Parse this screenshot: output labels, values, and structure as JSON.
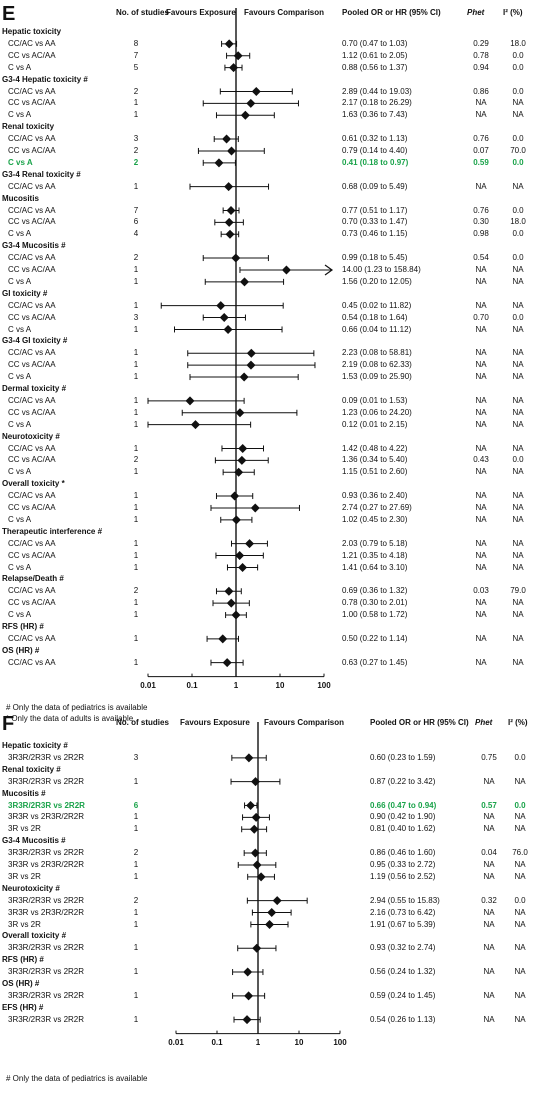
{
  "headers": {
    "n": "No. of studies",
    "exposure": "Favours Exposure",
    "comparison": "Favours Comparison",
    "or": "Pooled OR or HR (95% CI)",
    "phet": "Phet",
    "i2": "I² (%)"
  },
  "chart_data": [
    {
      "panel": "E",
      "type": "forest",
      "x_scale": "log",
      "xlim": [
        0.01,
        100
      ],
      "x_ticks": [
        "0.01",
        "0.1",
        "1",
        "10",
        "100"
      ],
      "reference_line": 1,
      "notes": [
        "# Only the data of pediatrics is available",
        "* Only the data of adults is available"
      ],
      "rows": [
        {
          "group": "Hepatic toxicity"
        },
        {
          "label": "CC/AC vs AA",
          "n": "8",
          "or": 0.7,
          "lo": 0.47,
          "hi": 1.03,
          "ci": "0.70 (0.47 to 1.03)",
          "phet": "0.29",
          "i2": "18.0"
        },
        {
          "label": "CC vs AC/AA",
          "n": "7",
          "or": 1.12,
          "lo": 0.61,
          "hi": 2.05,
          "ci": "1.12 (0.61 to 2.05)",
          "phet": "0.78",
          "i2": "0.0"
        },
        {
          "label": "C vs A",
          "n": "5",
          "or": 0.88,
          "lo": 0.56,
          "hi": 1.37,
          "ci": "0.88 (0.56 to 1.37)",
          "phet": "0.94",
          "i2": "0.0"
        },
        {
          "group": "G3-4 Hepatic toxicity #"
        },
        {
          "label": "CC/AC vs AA",
          "n": "2",
          "or": 2.89,
          "lo": 0.44,
          "hi": 19.03,
          "ci": "2.89 (0.44 to 19.03)",
          "phet": "0.86",
          "i2": "0.0"
        },
        {
          "label": "CC vs AC/AA",
          "n": "1",
          "or": 2.17,
          "lo": 0.18,
          "hi": 26.29,
          "ci": "2.17 (0.18 to 26.29)",
          "phet": "NA",
          "i2": "NA"
        },
        {
          "label": "C vs A",
          "n": "1",
          "or": 1.63,
          "lo": 0.36,
          "hi": 7.43,
          "ci": "1.63 (0.36 to 7.43)",
          "phet": "NA",
          "i2": "NA"
        },
        {
          "group": "Renal toxicity"
        },
        {
          "label": "CC/AC vs AA",
          "n": "3",
          "or": 0.61,
          "lo": 0.32,
          "hi": 1.13,
          "ci": "0.61 (0.32 to 1.13)",
          "phet": "0.76",
          "i2": "0.0"
        },
        {
          "label": "CC vs AC/AA",
          "n": "2",
          "or": 0.79,
          "lo": 0.14,
          "hi": 4.4,
          "ci": "0.79 (0.14 to 4.40)",
          "phet": "0.07",
          "i2": "70.0"
        },
        {
          "label": "C vs A",
          "n": "2",
          "or": 0.41,
          "lo": 0.18,
          "hi": 0.97,
          "ci": "0.41 (0.18 to 0.97)",
          "phet": "0.59",
          "i2": "0.0",
          "highlight": true
        },
        {
          "group": "G3-4 Renal toxicity #"
        },
        {
          "label": "CC/AC vs AA",
          "n": "1",
          "or": 0.68,
          "lo": 0.09,
          "hi": 5.49,
          "ci": "0.68 (0.09 to 5.49)",
          "phet": "NA",
          "i2": "NA"
        },
        {
          "group": "Mucositis"
        },
        {
          "label": "CC/AC vs AA",
          "n": "7",
          "or": 0.77,
          "lo": 0.51,
          "hi": 1.17,
          "ci": "0.77 (0.51 to 1.17)",
          "phet": "0.76",
          "i2": "0.0"
        },
        {
          "label": "CC vs AC/AA",
          "n": "6",
          "or": 0.7,
          "lo": 0.33,
          "hi": 1.47,
          "ci": "0.70 (0.33 to 1.47)",
          "phet": "0.30",
          "i2": "18.0"
        },
        {
          "label": "C vs A",
          "n": "4",
          "or": 0.73,
          "lo": 0.46,
          "hi": 1.15,
          "ci": "0.73 (0.46 to 1.15)",
          "phet": "0.98",
          "i2": "0.0"
        },
        {
          "group": "G3-4 Mucositis #"
        },
        {
          "label": "CC/AC vs AA",
          "n": "2",
          "or": 0.99,
          "lo": 0.18,
          "hi": 5.45,
          "ci": "0.99 (0.18 to 5.45)",
          "phet": "0.54",
          "i2": "0.0"
        },
        {
          "label": "CC vs AC/AA",
          "n": "1",
          "or": 14.0,
          "lo": 1.23,
          "hi": 158.84,
          "ci": "14.00 (1.23 to 158.84)",
          "phet": "NA",
          "i2": "NA",
          "arrow": true
        },
        {
          "label": "C vs A",
          "n": "1",
          "or": 1.56,
          "lo": 0.2,
          "hi": 12.05,
          "ci": "1.56 (0.20 to 12.05)",
          "phet": "NA",
          "i2": "NA"
        },
        {
          "group": "GI toxicity #"
        },
        {
          "label": "CC/AC vs AA",
          "n": "1",
          "or": 0.45,
          "lo": 0.02,
          "hi": 11.82,
          "ci": "0.45 (0.02 to 11.82)",
          "phet": "NA",
          "i2": "NA"
        },
        {
          "label": "CC vs AC/AA",
          "n": "3",
          "or": 0.54,
          "lo": 0.18,
          "hi": 1.64,
          "ci": "0.54 (0.18 to 1.64)",
          "phet": "0.70",
          "i2": "0.0"
        },
        {
          "label": "C vs A",
          "n": "1",
          "or": 0.66,
          "lo": 0.04,
          "hi": 11.12,
          "ci": "0.66 (0.04 to 11.12)",
          "phet": "NA",
          "i2": "NA"
        },
        {
          "group": "G3-4 GI toxicity #"
        },
        {
          "label": "CC/AC vs AA",
          "n": "1",
          "or": 2.23,
          "lo": 0.08,
          "hi": 58.81,
          "ci": "2.23 (0.08 to 58.81)",
          "phet": "NA",
          "i2": "NA"
        },
        {
          "label": "CC vs AC/AA",
          "n": "1",
          "or": 2.19,
          "lo": 0.08,
          "hi": 62.33,
          "ci": "2.19 (0.08 to 62.33)",
          "phet": "NA",
          "i2": "NA"
        },
        {
          "label": "C vs A",
          "n": "1",
          "or": 1.53,
          "lo": 0.09,
          "hi": 25.9,
          "ci": "1.53 (0.09 to 25.90)",
          "phet": "NA",
          "i2": "NA"
        },
        {
          "group": "Dermal toxicity #"
        },
        {
          "label": "CC/AC vs AA",
          "n": "1",
          "or": 0.09,
          "lo": 0.01,
          "hi": 1.53,
          "ci": "0.09 (0.01 to 1.53)",
          "phet": "NA",
          "i2": "NA"
        },
        {
          "label": "CC vs AC/AA",
          "n": "1",
          "or": 1.23,
          "lo": 0.06,
          "hi": 24.2,
          "ci": "1.23 (0.06 to 24.20)",
          "phet": "NA",
          "i2": "NA"
        },
        {
          "label": "C vs A",
          "n": "1",
          "or": 0.12,
          "lo": 0.01,
          "hi": 2.15,
          "ci": "0.12 (0.01 to 2.15)",
          "phet": "NA",
          "i2": "NA"
        },
        {
          "group": "Neurotoxicity #"
        },
        {
          "label": "CC/AC vs AA",
          "n": "1",
          "or": 1.42,
          "lo": 0.48,
          "hi": 4.22,
          "ci": "1.42 (0.48 to 4.22)",
          "phet": "NA",
          "i2": "NA"
        },
        {
          "label": "CC vs AC/AA",
          "n": "2",
          "or": 1.36,
          "lo": 0.34,
          "hi": 5.4,
          "ci": "1.36 (0.34 to 5.40)",
          "phet": "0.43",
          "i2": "0.0"
        },
        {
          "label": "C vs A",
          "n": "1",
          "or": 1.15,
          "lo": 0.51,
          "hi": 2.6,
          "ci": "1.15 (0.51 to 2.60)",
          "phet": "NA",
          "i2": "NA"
        },
        {
          "group": "Overall toxicity *"
        },
        {
          "label": "CC/AC vs AA",
          "n": "1",
          "or": 0.93,
          "lo": 0.36,
          "hi": 2.4,
          "ci": "0.93 (0.36 to 2.40)",
          "phet": "NA",
          "i2": "NA"
        },
        {
          "label": "CC vs AC/AA",
          "n": "1",
          "or": 2.74,
          "lo": 0.27,
          "hi": 27.69,
          "ci": "2.74 (0.27 to 27.69)",
          "phet": "NA",
          "i2": "NA"
        },
        {
          "label": "C vs A",
          "n": "1",
          "or": 1.02,
          "lo": 0.45,
          "hi": 2.3,
          "ci": "1.02 (0.45 to 2.30)",
          "phet": "NA",
          "i2": "NA"
        },
        {
          "group": "Therapeutic interference #"
        },
        {
          "label": "CC/AC vs AA",
          "n": "1",
          "or": 2.03,
          "lo": 0.79,
          "hi": 5.18,
          "ci": "2.03 (0.79 to 5.18)",
          "phet": "NA",
          "i2": "NA"
        },
        {
          "label": "CC vs AC/AA",
          "n": "1",
          "or": 1.21,
          "lo": 0.35,
          "hi": 4.18,
          "ci": "1.21 (0.35 to 4.18)",
          "phet": "NA",
          "i2": "NA"
        },
        {
          "label": "C vs A",
          "n": "1",
          "or": 1.41,
          "lo": 0.64,
          "hi": 3.1,
          "ci": "1.41 (0.64 to 3.10)",
          "phet": "NA",
          "i2": "NA"
        },
        {
          "group": "Relapse/Death #"
        },
        {
          "label": "CC/AC vs AA",
          "n": "2",
          "or": 0.69,
          "lo": 0.36,
          "hi": 1.32,
          "ci": "0.69 (0.36 to 1.32)",
          "phet": "0.03",
          "i2": "79.0"
        },
        {
          "label": "CC vs AC/AA",
          "n": "1",
          "or": 0.78,
          "lo": 0.3,
          "hi": 2.01,
          "ci": "0.78 (0.30 to 2.01)",
          "phet": "NA",
          "i2": "NA"
        },
        {
          "label": "C vs A",
          "n": "1",
          "or": 1.0,
          "lo": 0.58,
          "hi": 1.72,
          "ci": "1.00 (0.58 to 1.72)",
          "phet": "NA",
          "i2": "NA"
        },
        {
          "group": "RFS (HR) #"
        },
        {
          "label": "CC/AC vs AA",
          "n": "1",
          "or": 0.5,
          "lo": 0.22,
          "hi": 1.14,
          "ci": "0.50 (0.22 to 1.14)",
          "phet": "NA",
          "i2": "NA"
        },
        {
          "group": "OS (HR) #"
        },
        {
          "label": "CC/AC vs AA",
          "n": "1",
          "or": 0.63,
          "lo": 0.27,
          "hi": 1.45,
          "ci": "0.63 (0.27 to 1.45)",
          "phet": "NA",
          "i2": "NA"
        }
      ]
    },
    {
      "panel": "F",
      "type": "forest",
      "x_scale": "log",
      "xlim": [
        0.01,
        100
      ],
      "x_ticks": [
        "0.01",
        "0.1",
        "1",
        "10",
        "100"
      ],
      "reference_line": 1,
      "notes": [
        "# Only the data of pediatrics is available"
      ],
      "rows": [
        {
          "group": "Hepatic toxicity #"
        },
        {
          "label": "3R3R/2R3R vs 2R2R",
          "n": "3",
          "or": 0.6,
          "lo": 0.23,
          "hi": 1.59,
          "ci": "0.60 (0.23 to 1.59)",
          "phet": "0.75",
          "i2": "0.0"
        },
        {
          "group": "Renal toxicity #"
        },
        {
          "label": "3R3R/2R3R vs 2R2R",
          "n": "1",
          "or": 0.87,
          "lo": 0.22,
          "hi": 3.42,
          "ci": "0.87 (0.22 to 3.42)",
          "phet": "NA",
          "i2": "NA"
        },
        {
          "group": "Mucositis #"
        },
        {
          "label": "3R3R/2R3R vs 2R2R",
          "n": "6",
          "or": 0.66,
          "lo": 0.47,
          "hi": 0.94,
          "ci": "0.66 (0.47 to 0.94)",
          "phet": "0.57",
          "i2": "0.0",
          "highlight": true
        },
        {
          "label": "3R3R vs 2R3R/2R2R",
          "n": "1",
          "or": 0.9,
          "lo": 0.42,
          "hi": 1.9,
          "ci": "0.90 (0.42 to 1.90)",
          "phet": "NA",
          "i2": "NA"
        },
        {
          "label": "3R vs 2R",
          "n": "1",
          "or": 0.81,
          "lo": 0.4,
          "hi": 1.62,
          "ci": "0.81 (0.40 to 1.62)",
          "phet": "NA",
          "i2": "NA"
        },
        {
          "group": "G3-4 Mucositis #"
        },
        {
          "label": "3R3R/2R3R vs 2R2R",
          "n": "2",
          "or": 0.86,
          "lo": 0.46,
          "hi": 1.6,
          "ci": "0.86 (0.46 to 1.60)",
          "phet": "0.04",
          "i2": "76.0"
        },
        {
          "label": "3R3R vs 2R3R/2R2R",
          "n": "1",
          "or": 0.95,
          "lo": 0.33,
          "hi": 2.72,
          "ci": "0.95 (0.33 to 2.72)",
          "phet": "NA",
          "i2": "NA"
        },
        {
          "label": "3R vs 2R",
          "n": "1",
          "or": 1.19,
          "lo": 0.56,
          "hi": 2.52,
          "ci": "1.19 (0.56 to 2.52)",
          "phet": "NA",
          "i2": "NA"
        },
        {
          "group": "Neurotoxicity #"
        },
        {
          "label": "3R3R/2R3R vs 2R2R",
          "n": "2",
          "or": 2.94,
          "lo": 0.55,
          "hi": 15.83,
          "ci": "2.94 (0.55 to 15.83)",
          "phet": "0.32",
          "i2": "0.0"
        },
        {
          "label": "3R3R vs 2R3R/2R2R",
          "n": "1",
          "or": 2.16,
          "lo": 0.73,
          "hi": 6.42,
          "ci": "2.16 (0.73 to 6.42)",
          "phet": "NA",
          "i2": "NA"
        },
        {
          "label": "3R vs 2R",
          "n": "1",
          "or": 1.91,
          "lo": 0.67,
          "hi": 5.39,
          "ci": "1.91 (0.67 to 5.39)",
          "phet": "NA",
          "i2": "NA"
        },
        {
          "group": "Overall toxicity #"
        },
        {
          "label": "3R3R/2R3R vs 2R2R",
          "n": "1",
          "or": 0.93,
          "lo": 0.32,
          "hi": 2.74,
          "ci": "0.93 (0.32 to 2.74)",
          "phet": "NA",
          "i2": "NA"
        },
        {
          "group": "RFS (HR) #"
        },
        {
          "label": "3R3R/2R3R vs 2R2R",
          "n": "1",
          "or": 0.56,
          "lo": 0.24,
          "hi": 1.32,
          "ci": "0.56 (0.24 to 1.32)",
          "phet": "NA",
          "i2": "NA"
        },
        {
          "group": "OS (HR) #"
        },
        {
          "label": "3R3R/2R3R vs 2R2R",
          "n": "1",
          "or": 0.59,
          "lo": 0.24,
          "hi": 1.45,
          "ci": "0.59 (0.24 to 1.45)",
          "phet": "NA",
          "i2": "NA"
        },
        {
          "group": "EFS (HR) #"
        },
        {
          "label": "3R3R/2R3R vs 2R2R",
          "n": "1",
          "or": 0.54,
          "lo": 0.26,
          "hi": 1.13,
          "ci": "0.54 (0.26 to 1.13)",
          "phet": "NA",
          "i2": "NA"
        }
      ]
    }
  ],
  "colors": {
    "highlight": "#1aa34a",
    "ink": "#111111"
  }
}
